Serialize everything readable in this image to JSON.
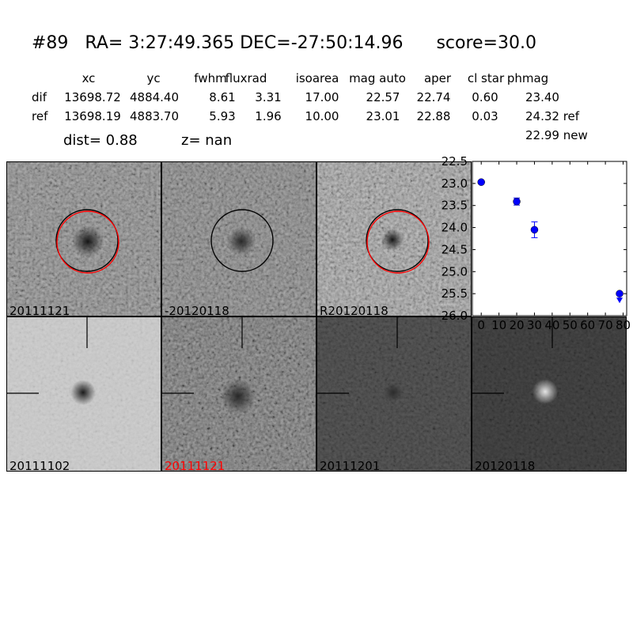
{
  "header": {
    "id": "#89",
    "ra": "RA= 3:27:49.365",
    "dec": "DEC=-27:50:14.96",
    "score": "score=30.0"
  },
  "table": {
    "columns": [
      "xc",
      "yc",
      "fwhm",
      "fluxrad",
      "isoarea",
      "mag auto",
      "aper",
      "cl star",
      "phmag"
    ],
    "rows": [
      {
        "label": "dif",
        "values": [
          "13698.72",
          "4884.40",
          "8.61",
          "3.31",
          "17.00",
          "22.57",
          "22.74",
          "0.60",
          "23.40"
        ]
      },
      {
        "label": "ref",
        "values": [
          "13698.19",
          "4883.70",
          "5.93",
          "1.96",
          "10.00",
          "23.01",
          "22.88",
          "0.03",
          "24.32 ref"
        ]
      }
    ],
    "extra_phmag": "22.99 new",
    "dist": "dist=  0.88",
    "z": "z=   nan"
  },
  "panels": [
    {
      "label": "20111121",
      "label_color": "#000000",
      "circles": [
        "#000000",
        "#ff0000"
      ]
    },
    {
      "label": "-20120118",
      "label_color": "#000000",
      "circles": [
        "#000000"
      ]
    },
    {
      "label": "R20120118",
      "label_color": "#000000",
      "circles": [
        "#000000",
        "#ff0000"
      ]
    },
    {
      "label": "20111102",
      "label_color": "#000000",
      "circles": []
    },
    {
      "label": "20111121",
      "label_color": "#ff0000",
      "circles": []
    },
    {
      "label": "20111201",
      "label_color": "#000000",
      "circles": []
    },
    {
      "label": "20120118",
      "label_color": "#000000",
      "circles": []
    }
  ],
  "chart_data": {
    "type": "scatter",
    "title": "",
    "xlabel": "",
    "ylabel": "",
    "xlim": [
      -5,
      82
    ],
    "ylim": [
      26.0,
      22.5
    ],
    "y_inverted": true,
    "xticks": [
      "0",
      "10",
      "20",
      "30",
      "40",
      "50",
      "60",
      "70",
      "80"
    ],
    "yticks": [
      "22.5",
      "23.0",
      "23.5",
      "24.0",
      "24.5",
      "25.0",
      "25.5",
      "26.0"
    ],
    "marker_color": "#0000ff",
    "points": [
      {
        "x": 0,
        "y": 22.97,
        "err": 0.02
      },
      {
        "x": 20,
        "y": 23.41,
        "err": 0.08
      },
      {
        "x": 30,
        "y": 24.05,
        "err": 0.18
      },
      {
        "x": 78,
        "y": 25.5,
        "upper_limit": true
      }
    ]
  }
}
